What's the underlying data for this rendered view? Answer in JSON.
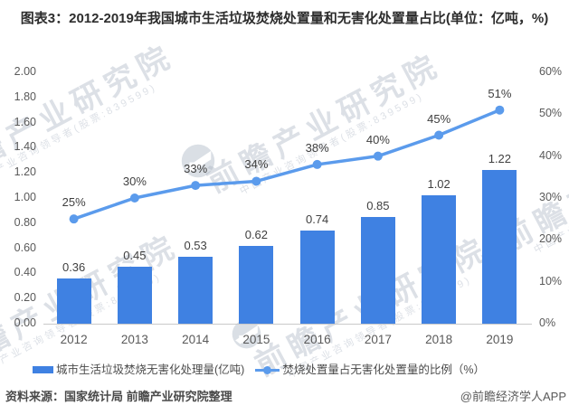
{
  "title": "图表3：2012-2019年我国城市生活垃圾焚烧处置量和无害化处置量占比(单位：亿吨，%)",
  "chart_data": {
    "type": "bar+line combo",
    "categories": [
      "2012",
      "2013",
      "2014",
      "2015",
      "2016",
      "2017",
      "2018",
      "2019"
    ],
    "series": [
      {
        "name": "城市生活垃圾焚烧无害化处理量(亿吨)",
        "type": "bar",
        "axis": "left",
        "color": "#3F81E2",
        "values": [
          0.36,
          0.45,
          0.53,
          0.62,
          0.74,
          0.85,
          1.02,
          1.22
        ],
        "labels": [
          "0.36",
          "0.45",
          "0.53",
          "0.62",
          "0.74",
          "0.85",
          "1.02",
          "1.22"
        ]
      },
      {
        "name": "焚烧处置量占无害化处置量的比例（%）",
        "type": "line",
        "axis": "right",
        "color": "#5B9BEC",
        "values": [
          25,
          30,
          33,
          34,
          38,
          40,
          45,
          51
        ],
        "labels": [
          "25%",
          "30%",
          "33%",
          "34%",
          "38%",
          "40%",
          "45%",
          "51%"
        ]
      }
    ],
    "left_axis": {
      "min": 0,
      "max": 2.0,
      "step": 0.2,
      "ticks": [
        "2.00",
        "1.80",
        "1.60",
        "1.40",
        "1.20",
        "1.00",
        "0.80",
        "0.60",
        "0.40",
        "0.20",
        "0.00"
      ]
    },
    "right_axis": {
      "min": 0,
      "max": 60,
      "step": 10,
      "ticks": [
        "60%",
        "50%",
        "40%",
        "30%",
        "20%",
        "10%",
        "0%"
      ]
    },
    "grid": false,
    "legend_position": "bottom"
  },
  "legend": {
    "bar_label": "城市生活垃圾焚烧无害化处理量(亿吨)",
    "line_label": "焚烧处置量占无害化处置量的比例（%）"
  },
  "footer": {
    "source": "资料来源：国家统计局 前瞻产业研究院整理",
    "credit": "@前瞻经济学人APP"
  },
  "watermark": {
    "text": "前瞻产业研究院",
    "subtext": "中国产业咨询领导者(股票:839599)"
  },
  "colors": {
    "bar": "#3F81E2",
    "line": "#5B9BEC",
    "axis_text": "#595959",
    "data_label": "#3F3F3F",
    "axis_line": "#C9C9C9"
  }
}
